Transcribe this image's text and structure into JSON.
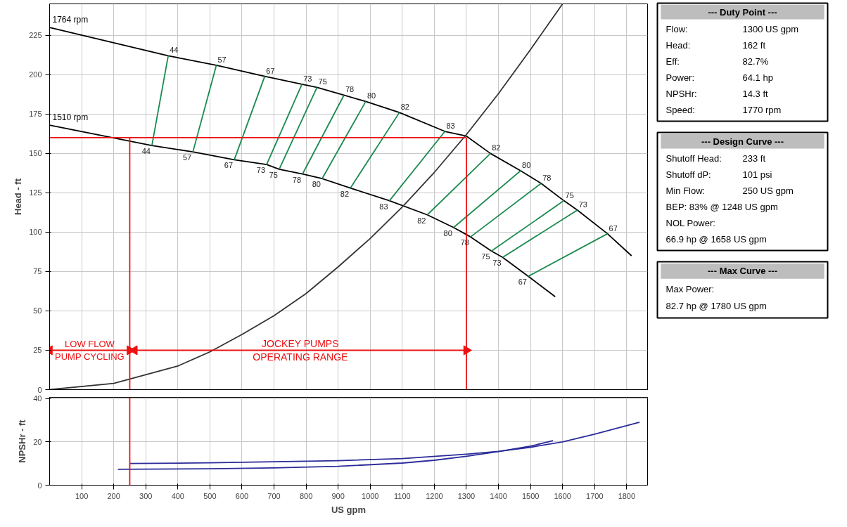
{
  "chart_data": [
    {
      "type": "line",
      "ylabel": "Head - ft",
      "xlim": [
        0,
        1865
      ],
      "ylim": [
        0,
        245
      ],
      "xticks": [
        100,
        200,
        300,
        400,
        500,
        600,
        700,
        800,
        900,
        1000,
        1100,
        1200,
        1300,
        1400,
        1500,
        1600,
        1700,
        1800
      ],
      "yticks": [
        0,
        25,
        50,
        75,
        100,
        125,
        150,
        175,
        200,
        225
      ],
      "grid": true,
      "tick_labels": "y",
      "series": [
        {
          "name": "1764 rpm",
          "color": "#000000",
          "x": [
            0,
            370,
            520,
            671,
            787,
            834,
            918,
            986,
            1091,
            1233,
            1300,
            1375,
            1469,
            1533,
            1604,
            1646,
            1740,
            1815
          ],
          "values": [
            230,
            212,
            206,
            199,
            194,
            192,
            187,
            183,
            176,
            164,
            161,
            150,
            139,
            131,
            120,
            114,
            99,
            85
          ]
        },
        {
          "name": "1510 rpm",
          "color": "#000000",
          "x": [
            0,
            319,
            447,
            576,
            677,
            716,
            789,
            850,
            938,
            1060,
            1178,
            1260,
            1313,
            1378,
            1413,
            1493,
            1577
          ],
          "values": [
            168,
            155,
            151,
            146,
            143,
            140,
            137,
            134,
            128,
            120,
            111,
            103,
            97,
            88,
            84,
            72,
            59
          ]
        },
        {
          "color": "#333333",
          "x": [
            0,
            200,
            400,
            500,
            600,
            700,
            800,
            900,
            1000,
            1100,
            1200,
            1300,
            1400,
            1500,
            1600
          ],
          "values": [
            0,
            4,
            15,
            24,
            35,
            47,
            61,
            78,
            96,
            116,
            138,
            162,
            188,
            216,
            245
          ]
        },
        {
          "color": "#1a8a4f",
          "x": [
            370,
            319
          ],
          "values": [
            212,
            155
          ]
        },
        {
          "color": "#1a8a4f",
          "x": [
            520,
            447
          ],
          "values": [
            206,
            151
          ]
        },
        {
          "color": "#1a8a4f",
          "x": [
            671,
            576
          ],
          "values": [
            199,
            146
          ]
        },
        {
          "color": "#1a8a4f",
          "x": [
            787,
            677
          ],
          "values": [
            194,
            143
          ]
        },
        {
          "color": "#1a8a4f",
          "x": [
            834,
            716
          ],
          "values": [
            192,
            140
          ]
        },
        {
          "color": "#1a8a4f",
          "x": [
            918,
            789
          ],
          "values": [
            187,
            137
          ]
        },
        {
          "color": "#1a8a4f",
          "x": [
            986,
            850
          ],
          "values": [
            183,
            134
          ]
        },
        {
          "color": "#1a8a4f",
          "x": [
            1091,
            938
          ],
          "values": [
            176,
            128
          ]
        },
        {
          "color": "#1a8a4f",
          "x": [
            1233,
            1060
          ],
          "values": [
            164,
            120
          ]
        },
        {
          "color": "#1a8a4f",
          "x": [
            1375,
            1178
          ],
          "values": [
            150,
            111
          ]
        },
        {
          "color": "#1a8a4f",
          "x": [
            1469,
            1260
          ],
          "values": [
            139,
            103
          ]
        },
        {
          "color": "#1a8a4f",
          "x": [
            1533,
            1313
          ],
          "values": [
            131,
            97
          ]
        },
        {
          "color": "#1a8a4f",
          "x": [
            1604,
            1378
          ],
          "values": [
            120,
            88
          ]
        },
        {
          "color": "#1a8a4f",
          "x": [
            1646,
            1413
          ],
          "values": [
            114,
            84
          ]
        },
        {
          "color": "#1a8a4f",
          "x": [
            1740,
            1493
          ],
          "values": [
            99,
            72
          ]
        },
        {
          "color": "#ee1111",
          "x": [
            0,
            1300
          ],
          "values": [
            160,
            160
          ]
        },
        {
          "color": "#ee1111",
          "x": [
            1300,
            1300
          ],
          "values": [
            160,
            0
          ]
        },
        {
          "color": "#ee1111",
          "x": [
            250,
            250
          ],
          "values": [
            0,
            160
          ]
        },
        {
          "color": "#ee1111",
          "marker": "triangle",
          "x": [
            0,
            250
          ],
          "values": [
            25,
            25
          ]
        },
        {
          "color": "#ee1111",
          "marker": "triangle",
          "x": [
            265,
            1300
          ],
          "values": [
            25,
            25
          ]
        }
      ],
      "annotations": [
        {
          "text": "LOW FLOW\nPUMP CYCLING",
          "x": 125,
          "y": 25
        },
        {
          "text": "JOCKEY PUMPS\nOPERATING RANGE",
          "x": 782,
          "y": 25
        },
        {
          "text": "44",
          "x": 370,
          "y": 212
        },
        {
          "text": "57",
          "x": 520,
          "y": 206
        },
        {
          "text": "67",
          "x": 671,
          "y": 199
        },
        {
          "text": "73",
          "x": 787,
          "y": 194
        },
        {
          "text": "75",
          "x": 834,
          "y": 192
        },
        {
          "text": "78",
          "x": 918,
          "y": 187
        },
        {
          "text": "80",
          "x": 986,
          "y": 183
        },
        {
          "text": "82",
          "x": 1091,
          "y": 176
        },
        {
          "text": "83",
          "x": 1233,
          "y": 164
        },
        {
          "text": "82",
          "x": 1375,
          "y": 150
        },
        {
          "text": "80",
          "x": 1469,
          "y": 139
        },
        {
          "text": "78",
          "x": 1533,
          "y": 131
        },
        {
          "text": "75",
          "x": 1604,
          "y": 120
        },
        {
          "text": "73",
          "x": 1646,
          "y": 114
        },
        {
          "text": "67",
          "x": 1740,
          "y": 99
        },
        {
          "text": "44",
          "x": 319,
          "y": 155
        },
        {
          "text": "57",
          "x": 447,
          "y": 151
        },
        {
          "text": "67",
          "x": 576,
          "y": 146
        },
        {
          "text": "73",
          "x": 677,
          "y": 143
        },
        {
          "text": "75",
          "x": 716,
          "y": 140
        },
        {
          "text": "78",
          "x": 789,
          "y": 137
        },
        {
          "text": "80",
          "x": 850,
          "y": 134
        },
        {
          "text": "82",
          "x": 938,
          "y": 128
        },
        {
          "text": "83",
          "x": 1060,
          "y": 120
        },
        {
          "text": "82",
          "x": 1178,
          "y": 111
        },
        {
          "text": "80",
          "x": 1260,
          "y": 103
        },
        {
          "text": "78",
          "x": 1313,
          "y": 97
        },
        {
          "text": "75",
          "x": 1378,
          "y": 88
        },
        {
          "text": "73",
          "x": 1413,
          "y": 84
        },
        {
          "text": "67",
          "x": 1493,
          "y": 72
        }
      ]
    },
    {
      "type": "line",
      "ylabel": "NPSHr - ft",
      "xlabel": "US gpm",
      "xlim": [
        0,
        1865
      ],
      "ylim": [
        0,
        40.5
      ],
      "xticks": [
        100,
        200,
        300,
        400,
        500,
        600,
        700,
        800,
        900,
        1000,
        1100,
        1200,
        1300,
        1400,
        1500,
        1600,
        1700,
        1800
      ],
      "yticks": [
        0,
        20,
        40
      ],
      "grid": true,
      "series": [
        {
          "color": "#2b2b9a",
          "x": [
            250,
            500,
            700,
            900,
            1100,
            1300,
            1400,
            1500,
            1600,
            1700,
            1840
          ],
          "values": [
            10,
            10.3,
            10.8,
            11.3,
            12.3,
            14.3,
            15.6,
            17.5,
            20,
            23.5,
            29
          ]
        },
        {
          "color": "#2b2b9a",
          "x": [
            213,
            500,
            700,
            900,
            1100,
            1200,
            1300,
            1400,
            1500,
            1570
          ],
          "values": [
            7.3,
            7.6,
            8.0,
            8.7,
            10.2,
            11.5,
            13.3,
            15.5,
            18,
            20.5
          ]
        },
        {
          "color": "#ee1111",
          "x": [
            250,
            250
          ],
          "values": [
            0,
            40.5
          ]
        }
      ]
    },
    {
      "type": "other",
      "title": "--- Duty Point ---",
      "annotations": [
        "Flow:\t1300 US gpm",
        "Head:\t162 ft",
        "Eff:\t82.7%",
        "Power:\t64.1 hp",
        "NPSHr:\t14.3 ft",
        "Speed:\t1770 rpm"
      ]
    },
    {
      "type": "other",
      "title": "--- Design Curve ---",
      "annotations": [
        "Shutoff Head:\t233 ft",
        "Shutoff dP:\t101 psi",
        "Min Flow:\t250 US gpm",
        "BEP: 83% @ 1248 US gpm",
        "NOL Power:",
        "66.9 hp @ 1658 US gpm"
      ]
    },
    {
      "type": "other",
      "title": "--- Max Curve ---",
      "annotations": [
        "Max Power:",
        "82.7 hp @ 1780 US gpm"
      ]
    }
  ]
}
